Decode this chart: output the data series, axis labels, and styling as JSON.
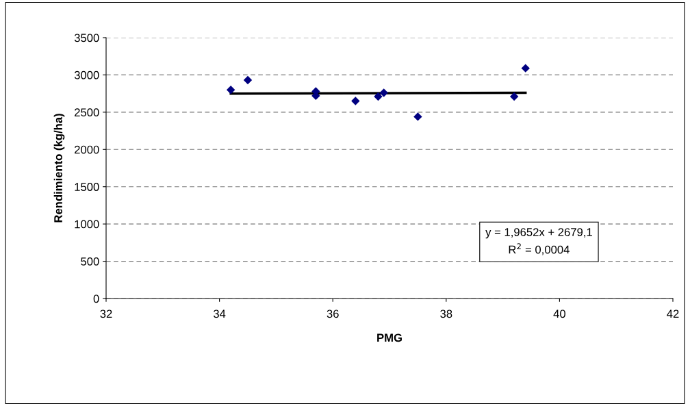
{
  "chart_data": {
    "type": "scatter",
    "xlabel": "PMG",
    "ylabel": "Rendimiento (kg/ha)",
    "series": [
      {
        "color": "#000080",
        "marker": "diamond",
        "x": [
          34.2,
          34.5,
          35.7,
          35.7,
          36.4,
          36.8,
          36.9,
          37.5,
          39.2,
          39.4
        ],
        "values": [
          2800,
          2930,
          2780,
          2720,
          2650,
          2710,
          2760,
          2440,
          2710,
          3090
        ]
      },
      {
        "type": "line",
        "color": "#000000",
        "x": [
          34.2,
          39.4
        ],
        "values": [
          2750,
          2760
        ]
      }
    ],
    "annotations": [
      "y = 1,9652x + 2679,1\nR$^{2}$ = 0,0004"
    ],
    "xlim": [
      32,
      42
    ],
    "xticks": [
      32,
      34,
      36,
      38,
      40,
      42
    ],
    "ylim": [
      0,
      3500
    ],
    "yticks": [
      0,
      500,
      1000,
      1500,
      2000,
      2500,
      3000,
      3500
    ],
    "grid": "y"
  }
}
